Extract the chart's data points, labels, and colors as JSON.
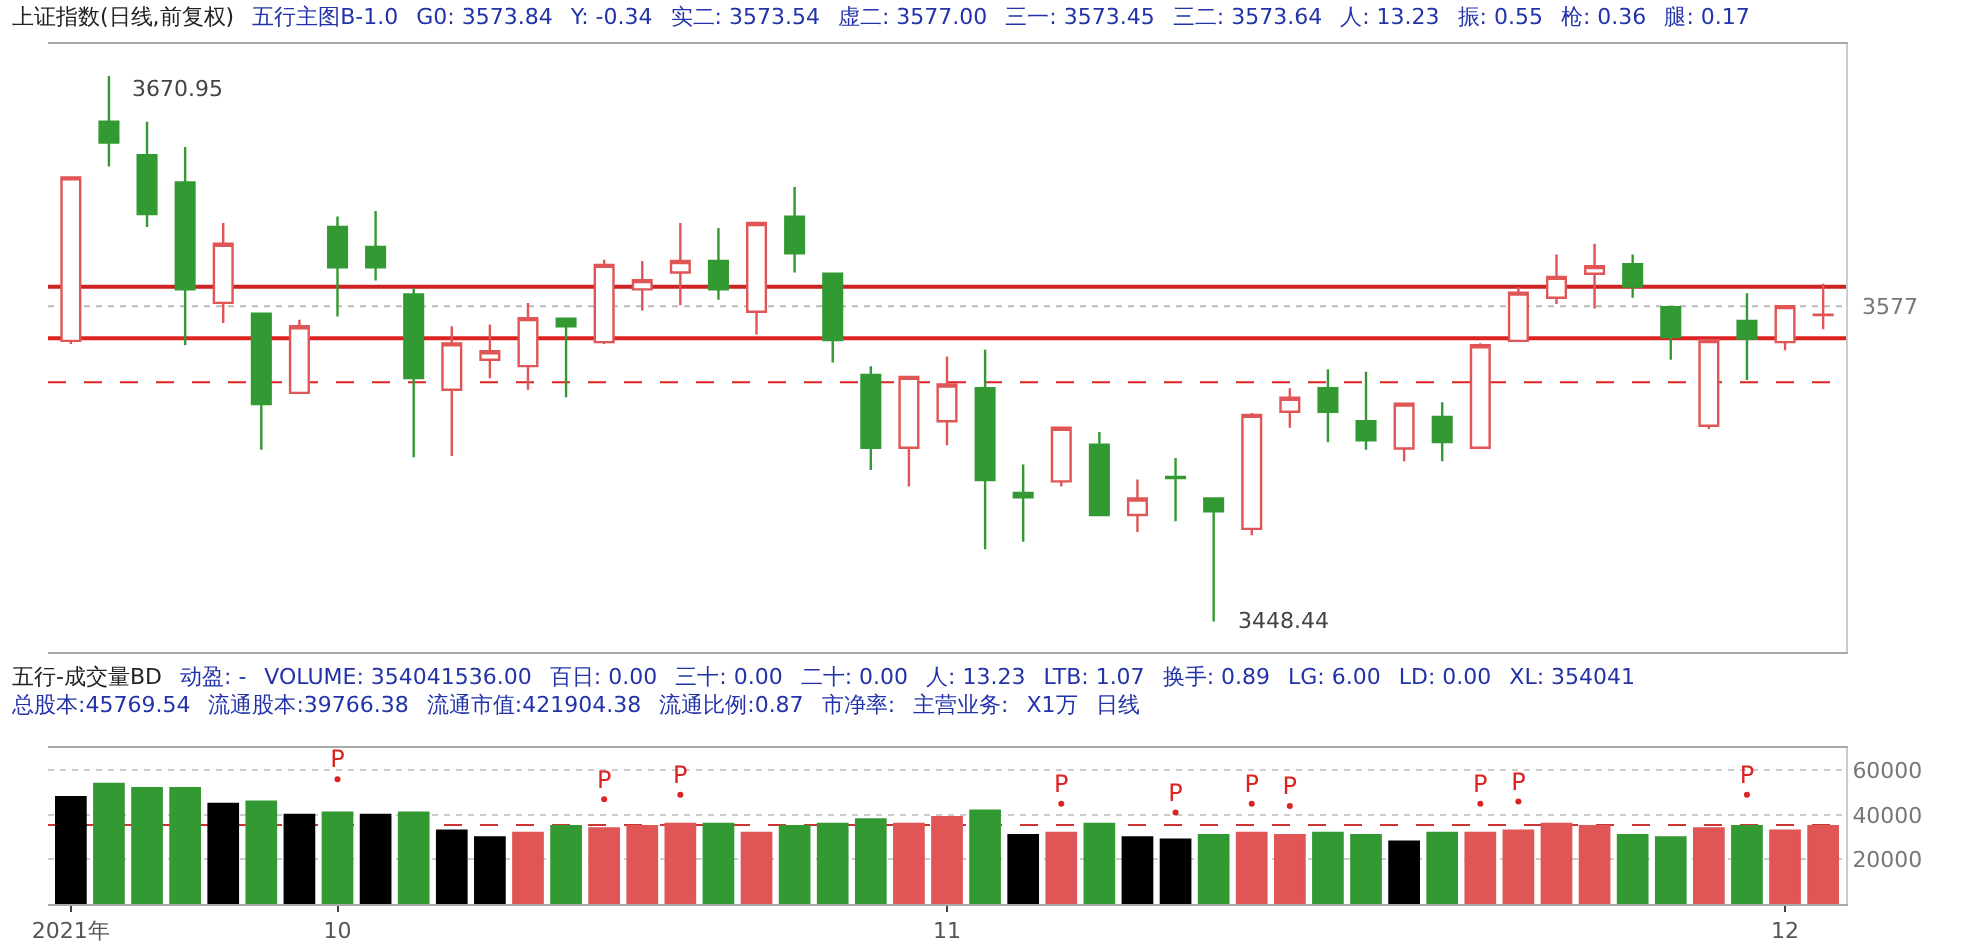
{
  "chart_data": [
    {
      "type": "candlestick",
      "title": "上证指数(日线,前复权)",
      "annotations": [
        "五行主图B-1.0",
        "G0: 3573.84",
        "Y: -0.34",
        "实二: 3573.54",
        "虚二: 3577.00",
        "三一: 3573.45",
        "三二: 3573.64",
        "人: 13.23",
        "振: 0.55",
        "枪: 0.36",
        "腿: 0.17",
        "3670.95",
        "3448.44"
      ],
      "categories": [
        null,
        null,
        null,
        null,
        null,
        null,
        null,
        null,
        null,
        null,
        null,
        null,
        null,
        null,
        null,
        null,
        null,
        null,
        null,
        null,
        null,
        null,
        null,
        null,
        null,
        null,
        null,
        null,
        null,
        null,
        null,
        null,
        null,
        null,
        null,
        null,
        null,
        null,
        null,
        null,
        null,
        null,
        null,
        null,
        null,
        null,
        null
      ],
      "ohlc": [
        [
          3562.9,
          3629.6,
          3561.6,
          3629.6
        ],
        [
          3652.3,
          3670.95,
          3634.0,
          3643.8
        ],
        [
          3638.6,
          3652.3,
          3609.4,
          3614.6
        ],
        [
          3627.5,
          3642.0,
          3561.1,
          3583.9
        ],
        [
          3578.4,
          3611.0,
          3570.2,
          3602.5
        ],
        [
          3574.0,
          3574.0,
          3518.5,
          3537.1
        ],
        [
          3541.7,
          3571.5,
          3541.7,
          3568.9
        ],
        [
          3609.4,
          3613.6,
          3572.8,
          3592.9
        ],
        [
          3601.2,
          3615.9,
          3587.5,
          3592.9
        ],
        [
          3581.8,
          3584.4,
          3515.4,
          3547.7
        ],
        [
          3543.0,
          3568.9,
          3515.9,
          3561.9
        ],
        [
          3555.2,
          3569.6,
          3547.7,
          3558.7
        ],
        [
          3552.6,
          3578.4,
          3543.0,
          3572.2
        ],
        [
          3572.0,
          3572.0,
          3539.9,
          3568.9
        ],
        [
          3562.4,
          3596.0,
          3561.6,
          3593.9
        ],
        [
          3583.9,
          3595.5,
          3575.3,
          3587.7
        ],
        [
          3590.8,
          3611.0,
          3577.4,
          3595.5
        ],
        [
          3595.5,
          3608.9,
          3579.7,
          3583.9
        ],
        [
          3574.8,
          3611.0,
          3565.5,
          3611.0
        ],
        [
          3613.6,
          3625.7,
          3590.8,
          3598.6
        ],
        [
          3590.3,
          3590.3,
          3554.1,
          3563.2
        ],
        [
          3549.0,
          3552.6,
          3510.2,
          3519.3
        ],
        [
          3519.3,
          3548.2,
          3503.5,
          3548.2
        ],
        [
          3530.1,
          3556.5,
          3520.3,
          3545.1
        ],
        [
          3543.6,
          3559.3,
          3477.9,
          3506.1
        ],
        [
          3500.9,
          3512.5,
          3481.0,
          3499.1
        ],
        [
          3505.6,
          3527.5,
          3503.5,
          3527.5
        ],
        [
          3520.6,
          3525.7,
          3491.9,
          3491.9
        ],
        [
          3491.9,
          3506.4,
          3484.9,
          3498.6
        ],
        [
          3507.4,
          3515.1,
          3489.3,
          3507.0
        ],
        [
          3498.6,
          3498.6,
          3448.44,
          3493.4
        ],
        [
          3486.2,
          3533.5,
          3483.6,
          3532.7
        ],
        [
          3534.0,
          3543.6,
          3527.5,
          3539.7
        ],
        [
          3543.6,
          3551.3,
          3521.6,
          3534.0
        ],
        [
          3530.1,
          3550.3,
          3518.5,
          3522.4
        ],
        [
          3519.0,
          3537.3,
          3513.8,
          3537.3
        ],
        [
          3531.9,
          3537.9,
          3513.8,
          3521.6
        ],
        [
          3519.3,
          3561.9,
          3519.3,
          3561.1
        ],
        [
          3562.9,
          3584.9,
          3562.9,
          3582.6
        ],
        [
          3580.5,
          3598.1,
          3577.9,
          3589.0
        ],
        [
          3590.3,
          3602.5,
          3576.1,
          3593.4
        ],
        [
          3594.2,
          3598.1,
          3580.5,
          3585.1
        ],
        [
          3576.6,
          3576.6,
          3555.2,
          3564.5
        ],
        [
          3528.3,
          3563.2,
          3527.0,
          3563.2
        ],
        [
          3571.0,
          3582.3,
          3546.9,
          3563.7
        ],
        [
          3562.4,
          3577.1,
          3559.1,
          3577.1
        ],
        [
          3573.4,
          3586.2,
          3567.6,
          3573.6
        ]
      ],
      "colors": [
        "#e05555",
        "#339933",
        "#339933",
        "#339933",
        "#e05555",
        "#339933",
        "#e05555",
        "#339933",
        "#339933",
        "#339933",
        "#e05555",
        "#e05555",
        "#e05555",
        "#339933",
        "#e05555",
        "#e05555",
        "#e05555",
        "#339933",
        "#e05555",
        "#339933",
        "#339933",
        "#339933",
        "#e05555",
        "#e05555",
        "#339933",
        "#339933",
        "#e05555",
        "#339933",
        "#e05555",
        "#339933",
        "#339933",
        "#e05555",
        "#e05555",
        "#339933",
        "#339933",
        "#e05555",
        "#339933",
        "#e05555",
        "#e05555",
        "#e05555",
        "#e05555",
        "#339933",
        "#339933",
        "#e05555",
        "#339933",
        "#e05555",
        "#e05555"
      ],
      "ylim": [
        3436,
        3684
      ],
      "ref_lines": [
        {
          "axis": "y",
          "value": 3577,
          "label": "3577",
          "color": "#bbbbbb",
          "line_style": "dotted"
        },
        {
          "axis": "y",
          "value": 3585,
          "color": "#cc2222",
          "line_style": "solid"
        },
        {
          "axis": "y",
          "value": 3564,
          "color": "#dd2222",
          "line_style": "solid"
        },
        {
          "axis": "y",
          "value": 3546,
          "color": "#dd2222",
          "line_style": "dashed"
        }
      ]
    },
    {
      "type": "bar",
      "title": "五行-成交量BD",
      "annotations": [
        "动盈: -",
        "VOLUME: 354041536.00",
        "百日: 0.00",
        "三十: 0.00",
        "二十: 0.00",
        "人: 13.23",
        "LTB: 1.07",
        "换手: 0.89",
        "LG: 6.00",
        "LD: 0.00",
        "XL: 354041",
        "总股本:45769.54",
        "流通股本:39766.38",
        "流通市值:421904.38",
        "流通比例:0.87",
        "市净率:",
        "主营业务:",
        "X1万",
        "日线"
      ],
      "categories": [
        "2021年",
        null,
        null,
        null,
        null,
        null,
        null,
        "10",
        null,
        null,
        null,
        null,
        null,
        null,
        null,
        null,
        null,
        null,
        null,
        null,
        null,
        null,
        null,
        "11",
        null,
        null,
        null,
        null,
        null,
        null,
        null,
        null,
        null,
        null,
        null,
        null,
        null,
        null,
        null,
        null,
        null,
        null,
        null,
        null,
        null,
        "12",
        null
      ],
      "series": [
        {
          "type": "bar",
          "values": [
            48000,
            54000,
            52000,
            52000,
            45000,
            46000,
            40000,
            41000,
            40000,
            41000,
            33000,
            30000,
            32000,
            35000,
            34000,
            35000,
            36000,
            36000,
            32000,
            35000,
            36000,
            38000,
            36000,
            39000,
            42000,
            31000,
            32000,
            36000,
            30000,
            29000,
            31000,
            32000,
            31000,
            32000,
            31000,
            28000,
            32000,
            32000,
            33000,
            36000,
            35000,
            31000,
            30000,
            34000,
            35000,
            33000,
            35000
          ],
          "colors": [
            "#000000",
            "#339933",
            "#339933",
            "#339933",
            "#000000",
            "#339933",
            "#000000",
            "#339933",
            "#000000",
            "#339933",
            "#000000",
            "#000000",
            "#e05555",
            "#339933",
            "#e05555",
            "#e05555",
            "#e05555",
            "#339933",
            "#e05555",
            "#339933",
            "#339933",
            "#339933",
            "#e05555",
            "#e05555",
            "#339933",
            "#000000",
            "#e05555",
            "#339933",
            "#000000",
            "#000000",
            "#339933",
            "#e05555",
            "#e05555",
            "#339933",
            "#339933",
            "#000000",
            "#339933",
            "#e05555",
            "#e05555",
            "#e05555",
            "#e05555",
            "#339933",
            "#339933",
            "#e05555",
            "#339933",
            "#e05555",
            "#e05555"
          ]
        },
        {
          "type": "scatter",
          "marker": "circle",
          "color": "#dd2222",
          "values": [
            null,
            null,
            null,
            null,
            null,
            null,
            null,
            56000,
            null,
            null,
            null,
            null,
            null,
            null,
            47000,
            null,
            49000,
            null,
            null,
            null,
            null,
            null,
            null,
            null,
            null,
            null,
            45000,
            null,
            null,
            41000,
            null,
            45000,
            44000,
            null,
            null,
            null,
            null,
            45000,
            46000,
            null,
            null,
            null,
            null,
            null,
            49000,
            null,
            null
          ],
          "value_labels": [
            null,
            null,
            null,
            null,
            null,
            null,
            null,
            "P",
            null,
            null,
            null,
            null,
            null,
            null,
            "P",
            null,
            "P",
            null,
            null,
            null,
            null,
            null,
            null,
            null,
            null,
            null,
            "P",
            null,
            null,
            "P",
            null,
            "P",
            "P",
            null,
            null,
            null,
            null,
            "P",
            "P",
            null,
            null,
            null,
            null,
            null,
            "P",
            null,
            null
          ]
        }
      ],
      "ylim": [
        0,
        70000
      ],
      "yticks": [
        20000,
        40000,
        60000
      ],
      "grid": "y",
      "ref_lines": [
        {
          "axis": "y",
          "value": 35400,
          "color": "#cc3333",
          "line_style": "dashed"
        }
      ]
    }
  ]
}
